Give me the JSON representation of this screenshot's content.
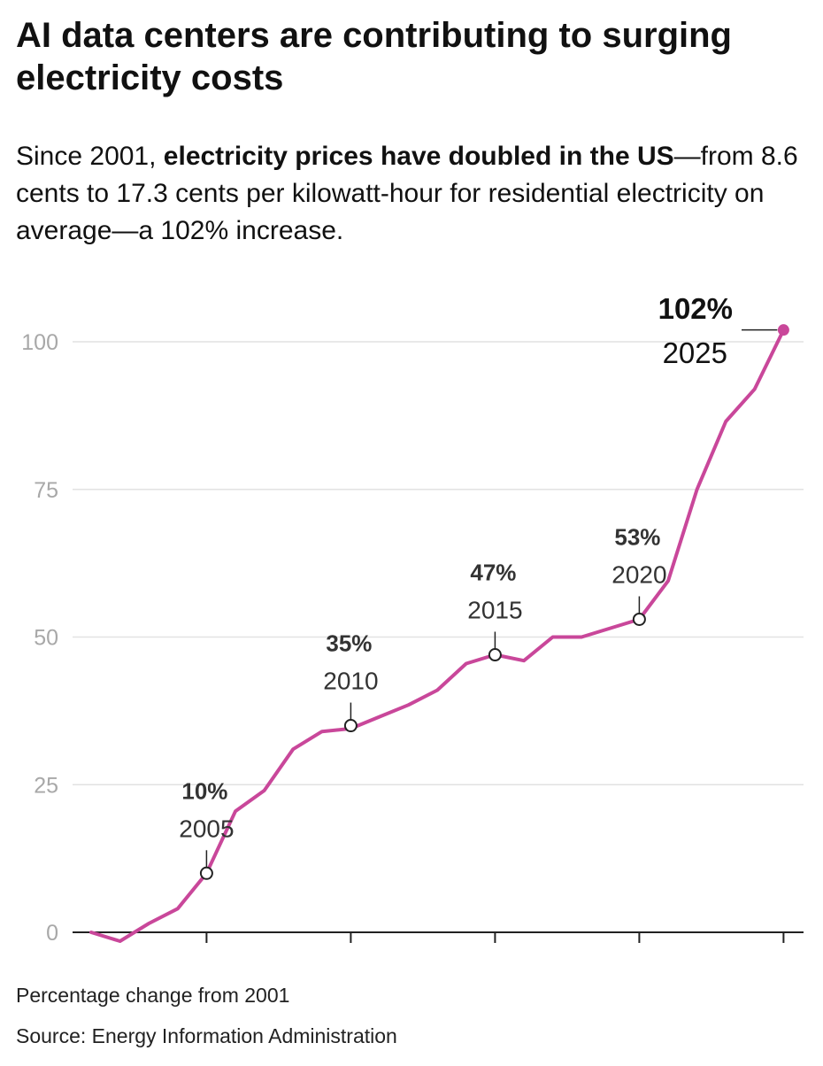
{
  "header": {
    "title": "AI data centers are contributing to surging electricity costs",
    "subtitle_lead": "Since 2001, ",
    "subtitle_bold": "electricity prices have doubled in the US",
    "subtitle_rest": "—from 8.6 cents to 17.3 cents per kilowatt-hour for residential electricity on average—a 102% increase."
  },
  "chart_data": {
    "type": "line",
    "x": [
      2001,
      2002,
      2003,
      2004,
      2005,
      2006,
      2007,
      2008,
      2009,
      2010,
      2011,
      2012,
      2013,
      2014,
      2015,
      2016,
      2017,
      2018,
      2019,
      2020,
      2021,
      2022,
      2023,
      2024,
      2025
    ],
    "series": [
      {
        "values": [
          0,
          -1.5,
          1.5,
          4,
          10,
          20.5,
          24,
          31,
          34,
          34.5,
          36.5,
          38.5,
          41,
          45.5,
          47,
          46,
          50,
          50,
          51.5,
          53,
          59.5,
          75,
          86.5,
          92,
          102
        ]
      }
    ],
    "ylim": [
      0,
      100
    ],
    "yticks": [
      0,
      25,
      50,
      75,
      100
    ],
    "xticks": [
      2005,
      2010,
      2015,
      2020,
      2025
    ],
    "grid": true,
    "line_color": "#c9479a",
    "annotations": [
      {
        "year": 2005,
        "value": 10,
        "label": "10%",
        "year_label": "2005"
      },
      {
        "year": 2010,
        "value": 35,
        "label": "35%",
        "year_label": "2010"
      },
      {
        "year": 2015,
        "value": 47,
        "label": "47%",
        "year_label": "2015"
      },
      {
        "year": 2020,
        "value": 53,
        "label": "53%",
        "year_label": "2020"
      },
      {
        "year": 2025,
        "value": 102,
        "label": "102%",
        "year_label": "2025"
      }
    ]
  },
  "footer": {
    "note": "Percentage change from 2001",
    "source": "Source: Energy Information Administration"
  }
}
